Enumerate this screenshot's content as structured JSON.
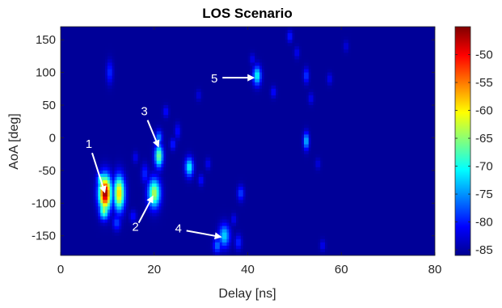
{
  "chart_data": {
    "type": "heatmap",
    "title": "LOS Scenario",
    "xlabel": "Delay [ns]",
    "ylabel": "AoA [deg]",
    "xlim": [
      0,
      80
    ],
    "ylim": [
      -180,
      170
    ],
    "xticks": [
      0,
      20,
      40,
      60,
      80
    ],
    "yticks": [
      150,
      100,
      50,
      0,
      -50,
      -100,
      -150
    ],
    "colorbar": {
      "range": [
        -86,
        -45
      ],
      "ticks": [
        -50,
        -55,
        -60,
        -65,
        -70,
        -75,
        -80,
        -85
      ],
      "colormap": "jet"
    },
    "background_level": -85,
    "blobs": [
      {
        "delay": 9.5,
        "aoa": -85,
        "power": -45,
        "dx": 0.9,
        "dy": 18
      },
      {
        "delay": 9.3,
        "aoa": -110,
        "power": -64,
        "dx": 0.7,
        "dy": 10
      },
      {
        "delay": 8.7,
        "aoa": -65,
        "power": -66,
        "dx": 0.6,
        "dy": 8
      },
      {
        "delay": 12.5,
        "aoa": -85,
        "power": -58,
        "dx": 0.8,
        "dy": 18
      },
      {
        "delay": 20.0,
        "aoa": -85,
        "power": -63,
        "dx": 0.9,
        "dy": 15
      },
      {
        "delay": 21.0,
        "aoa": -28,
        "power": -65,
        "dx": 0.6,
        "dy": 12
      },
      {
        "delay": 21.0,
        "aoa": 0,
        "power": -75,
        "dx": 0.5,
        "dy": 8
      },
      {
        "delay": 27.5,
        "aoa": -45,
        "power": -70,
        "dx": 0.6,
        "dy": 10
      },
      {
        "delay": 35.0,
        "aoa": -150,
        "power": -72,
        "dx": 0.8,
        "dy": 12
      },
      {
        "delay": 33.5,
        "aoa": -165,
        "power": -76,
        "dx": 0.6,
        "dy": 8
      },
      {
        "delay": 42.0,
        "aoa": 95,
        "power": -70,
        "dx": 0.6,
        "dy": 10
      },
      {
        "delay": 52.5,
        "aoa": -5,
        "power": -72,
        "dx": 0.4,
        "dy": 9
      },
      {
        "delay": 10.5,
        "aoa": 100,
        "power": -79,
        "dx": 0.5,
        "dy": 12
      },
      {
        "delay": 12.0,
        "aoa": -130,
        "power": -78,
        "dx": 0.6,
        "dy": 8
      },
      {
        "delay": 15.5,
        "aoa": -120,
        "power": -80,
        "dx": 0.5,
        "dy": 6
      },
      {
        "delay": 18.0,
        "aoa": -55,
        "power": -79,
        "dx": 0.5,
        "dy": 10
      },
      {
        "delay": 22.5,
        "aoa": 40,
        "power": -80,
        "dx": 0.4,
        "dy": 6
      },
      {
        "delay": 25.0,
        "aoa": 10,
        "power": -80,
        "dx": 0.4,
        "dy": 8
      },
      {
        "delay": 24.0,
        "aoa": -10,
        "power": -79,
        "dx": 0.4,
        "dy": 6
      },
      {
        "delay": 30.0,
        "aoa": -65,
        "power": -80,
        "dx": 0.4,
        "dy": 6
      },
      {
        "delay": 31.5,
        "aoa": -40,
        "power": -81,
        "dx": 0.4,
        "dy": 6
      },
      {
        "delay": 38.5,
        "aoa": -85,
        "power": -78,
        "dx": 0.5,
        "dy": 8
      },
      {
        "delay": 38.0,
        "aoa": -160,
        "power": -79,
        "dx": 0.5,
        "dy": 8
      },
      {
        "delay": 37.0,
        "aoa": -125,
        "power": -81,
        "dx": 0.4,
        "dy": 6
      },
      {
        "delay": 41.0,
        "aoa": 120,
        "power": -81,
        "dx": 0.4,
        "dy": 6
      },
      {
        "delay": 45.5,
        "aoa": 70,
        "power": -80,
        "dx": 0.4,
        "dy": 6
      },
      {
        "delay": 49.0,
        "aoa": 155,
        "power": -79,
        "dx": 0.4,
        "dy": 6
      },
      {
        "delay": 50.5,
        "aoa": 130,
        "power": -81,
        "dx": 0.4,
        "dy": 6
      },
      {
        "delay": 52.5,
        "aoa": 95,
        "power": -78,
        "dx": 0.4,
        "dy": 8
      },
      {
        "delay": 53.5,
        "aoa": 60,
        "power": -81,
        "dx": 0.4,
        "dy": 6
      },
      {
        "delay": 57.5,
        "aoa": 90,
        "power": -81,
        "dx": 0.4,
        "dy": 6
      },
      {
        "delay": 61.0,
        "aoa": 140,
        "power": -82,
        "dx": 0.4,
        "dy": 6
      },
      {
        "delay": 55.0,
        "aoa": -40,
        "power": -82,
        "dx": 0.4,
        "dy": 6
      },
      {
        "delay": 56.0,
        "aoa": -165,
        "power": -81,
        "dx": 0.4,
        "dy": 6
      },
      {
        "delay": 29.5,
        "aoa": 65,
        "power": -82,
        "dx": 0.4,
        "dy": 6
      },
      {
        "delay": 16.0,
        "aoa": -30,
        "power": -81,
        "dx": 0.4,
        "dy": 6
      }
    ],
    "annotations": [
      {
        "label": "1",
        "target_delay": 9.5,
        "target_aoa": -85
      },
      {
        "label": "2",
        "target_delay": 19.8,
        "target_aoa": -88
      },
      {
        "label": "3",
        "target_delay": 21.0,
        "target_aoa": -15
      },
      {
        "label": "4",
        "target_delay": 34.5,
        "target_aoa": -152
      },
      {
        "label": "5",
        "target_delay": 41.5,
        "target_aoa": 92
      }
    ]
  }
}
